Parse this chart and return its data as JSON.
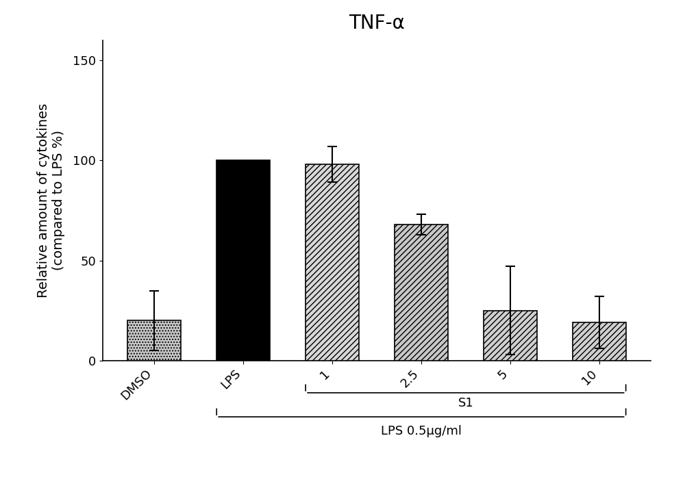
{
  "title": "TNF-α",
  "ylabel": "Relative amount of cytokines\n(compared to LPS %)",
  "categories": [
    "DMSO",
    "LPS",
    "1",
    "2.5",
    "5",
    "10"
  ],
  "values": [
    20,
    100,
    98,
    68,
    25,
    19
  ],
  "errors": [
    15,
    0,
    9,
    5,
    22,
    13
  ],
  "ylim": [
    0,
    160
  ],
  "yticks": [
    0,
    50,
    100,
    150
  ],
  "bar_colors": [
    "#c8c8c8",
    "#000000",
    "#d8d8d8",
    "#c8c8c8",
    "#d0d0d0",
    "#d0d0d0"
  ],
  "bar_hatches": [
    "....",
    "",
    "////",
    "////",
    "////",
    "////"
  ],
  "bar_edgecolors": [
    "#000000",
    "#000000",
    "#000000",
    "#000000",
    "#000000",
    "#000000"
  ],
  "xlabel_lps05": "LPS 0.5μg/ml",
  "xlabel_s1": "S1",
  "title_fontsize": 20,
  "axis_fontsize": 14,
  "tick_fontsize": 13,
  "bar_width": 0.6,
  "figsize": [
    10.0,
    7.32
  ],
  "dpi": 100
}
